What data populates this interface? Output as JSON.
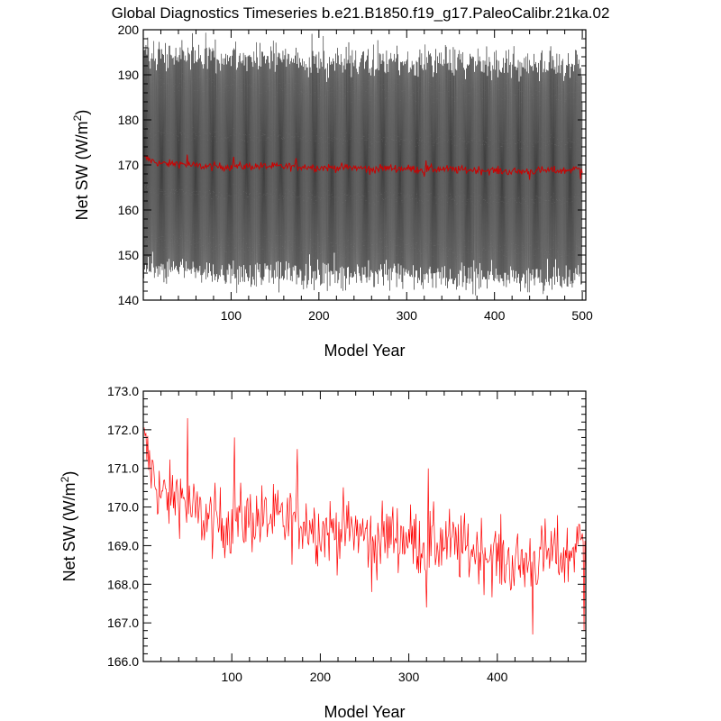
{
  "figure": {
    "title": "Global Diagnostics Timeseries b.e21.B1850.f19_g17.PaleoCalibr.21ka.02"
  },
  "chart_data": [
    {
      "type": "line",
      "panel": "monthly",
      "xlabel": "Model Year",
      "ylabel_main": "Net SW (W/m",
      "ylabel_sup": "2",
      "ylabel_close": ")",
      "xlim": [
        0,
        504
      ],
      "ylim": [
        140,
        200
      ],
      "xticks": [
        100,
        200,
        300,
        400,
        500
      ],
      "xtick_labels": [
        "100",
        "200",
        "300",
        "400",
        "500"
      ],
      "yticks": [
        140,
        150,
        160,
        170,
        180,
        190,
        200
      ],
      "ytick_labels": [
        "140",
        "150",
        "160",
        "170",
        "180",
        "190",
        "200"
      ],
      "series": [
        {
          "color": "#000000",
          "description_values": "monthly net SW, seasonal cycle spanning roughly 143–195 W/m2 over years 0–500",
          "monthly_min_approx": 144,
          "monthly_max_approx": 195,
          "annual_mean_approx": 169.5
        },
        {
          "color": "#cc0000",
          "values_ref": "annual_series"
        }
      ]
    },
    {
      "type": "line",
      "panel": "annual",
      "xlabel": "Model Year",
      "ylabel_main": "Net SW (W/m",
      "ylabel_sup": "2",
      "ylabel_close": ")",
      "xlim": [
        0,
        500
      ],
      "ylim": [
        166.0,
        173.0
      ],
      "xticks": [
        100,
        200,
        300,
        400
      ],
      "xtick_labels": [
        "100",
        "200",
        "300",
        "400"
      ],
      "yticks": [
        166,
        167,
        168,
        169,
        170,
        171,
        172,
        173
      ],
      "ytick_labels": [
        "166.0",
        "167.0",
        "168.0",
        "169.0",
        "170.0",
        "171.0",
        "172.0",
        "173.0"
      ],
      "series": [
        {
          "color": "#ff0000",
          "values_ref": "annual_series"
        }
      ]
    }
  ],
  "annual_series": {
    "x_start": 1,
    "x_end": 500,
    "anchor_years": [
      1,
      10,
      20,
      30,
      40,
      50,
      60,
      80,
      100,
      120,
      140,
      160,
      180,
      200,
      220,
      240,
      260,
      280,
      300,
      320,
      340,
      360,
      380,
      400,
      420,
      440,
      460,
      480,
      490,
      500
    ],
    "anchor_values": [
      171.6,
      170.9,
      170.3,
      170.2,
      170.4,
      170.0,
      169.8,
      169.6,
      169.6,
      169.7,
      169.7,
      169.6,
      169.7,
      169.4,
      169.4,
      169.4,
      169.1,
      169.3,
      169.2,
      169.0,
      169.1,
      168.9,
      168.9,
      168.7,
      168.5,
      168.6,
      168.8,
      168.7,
      169.1,
      168.9
    ],
    "highlights": [
      {
        "year": 50,
        "value": 172.3
      },
      {
        "year": 103,
        "value": 171.8
      },
      {
        "year": 174,
        "value": 171.5
      },
      {
        "year": 322,
        "value": 171.0
      },
      {
        "year": 258,
        "value": 167.8
      },
      {
        "year": 320,
        "value": 167.4
      },
      {
        "year": 440,
        "value": 166.7
      },
      {
        "year": 498,
        "value": 166.8
      }
    ]
  }
}
